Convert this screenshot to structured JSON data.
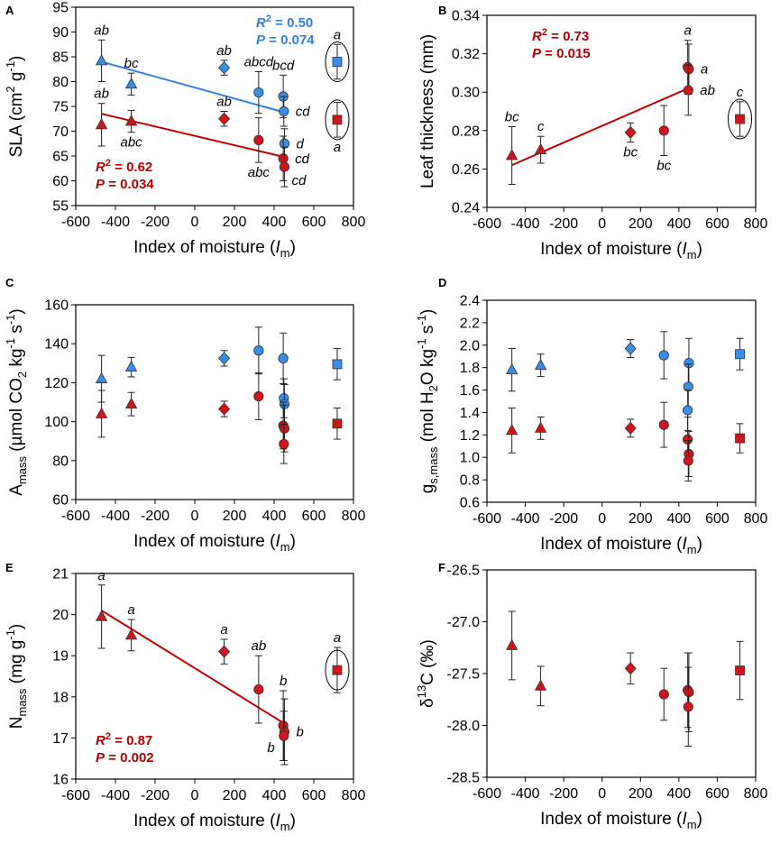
{
  "figure_title": "SLA, leaf thickness, Amass, gs,mass, Nmass and d13C versus index of moisture",
  "colors": {
    "blue": "#3b8de6",
    "red": "#d0141c",
    "blue_line": "#2f7fe0",
    "red_line": "#c00000",
    "blue_text": "#2f7fe0",
    "red_text": "#b00000",
    "axis": "#000000"
  },
  "chart_data": [
    {
      "panel": "A",
      "type": "scatter",
      "ylabel": "SLA (cm2 g-1)",
      "ylabel_main": "SLA (cm",
      "ylabel_sup1": "2",
      "ylabel_mid": " g",
      "ylabel_sup2": "-1",
      "ylabel_end": ")",
      "xlabel_main": "Index of moisture (",
      "xlabel_italic": "I",
      "xlabel_sub": "m",
      "xlabel_end": ")",
      "xlim": [
        -600,
        800
      ],
      "ylim": [
        55,
        95
      ],
      "xticks": [
        -600,
        -400,
        -200,
        0,
        200,
        400,
        600,
        800
      ],
      "yticks": [
        55,
        60,
        65,
        70,
        75,
        80,
        85,
        90,
        95
      ],
      "series": [
        {
          "name": "blue",
          "color": "#3b8de6",
          "points": [
            {
              "x": -470,
              "y": 84.2,
              "err": 4.2,
              "marker": "triangle",
              "label": "ab",
              "label_pos": "above"
            },
            {
              "x": -320,
              "y": 79.5,
              "err": 2.2,
              "marker": "triangle",
              "label": "bc",
              "label_pos": "above"
            },
            {
              "x": 148,
              "y": 82.8,
              "err": 1.5,
              "marker": "diamond",
              "label": "ab",
              "label_pos": "above"
            },
            {
              "x": 322,
              "y": 77.8,
              "err": 4.2,
              "marker": "circle",
              "label": "abcd",
              "label_pos": "above"
            },
            {
              "x": 446,
              "y": 77.0,
              "err": 4.3,
              "marker": "circle",
              "label": "bcd",
              "label_pos": "above"
            },
            {
              "x": 449,
              "y": 74.0,
              "err": 3.0,
              "marker": "circle",
              "label": "cd",
              "label_pos": "right"
            },
            {
              "x": 452,
              "y": 67.5,
              "err": 3.0,
              "marker": "circle",
              "label": "d",
              "label_pos": "right"
            },
            {
              "x": 718,
              "y": 84.0,
              "err": 3.5,
              "marker": "square",
              "label": "a",
              "label_pos": "above",
              "circled": true
            }
          ]
        },
        {
          "name": "red",
          "color": "#d0141c",
          "points": [
            {
              "x": -470,
              "y": 71.3,
              "err": 4.3,
              "marker": "triangle",
              "label": "ab",
              "label_pos": "above"
            },
            {
              "x": -320,
              "y": 72.0,
              "err": 2.2,
              "marker": "triangle",
              "label": "abc",
              "label_pos": "below"
            },
            {
              "x": 148,
              "y": 72.5,
              "err": 1.5,
              "marker": "diamond",
              "label": "ab",
              "label_pos": "above"
            },
            {
              "x": 322,
              "y": 68.2,
              "err": 4.5,
              "marker": "circle",
              "label": "abc",
              "label_pos": "below"
            },
            {
              "x": 446,
              "y": 64.5,
              "err": 4.5,
              "marker": "circle",
              "label": "cd",
              "label_pos": "right"
            },
            {
              "x": 452,
              "y": 62.8,
              "err": 4.0,
              "marker": "circle",
              "label": "cd",
              "label_pos": "right-low"
            },
            {
              "x": 718,
              "y": 72.3,
              "err": 3.5,
              "marker": "square",
              "label": "a",
              "label_pos": "below",
              "circled": true
            }
          ]
        }
      ],
      "fits": [
        {
          "color": "#2f7fe0",
          "x0": -470,
          "y0": 84.0,
          "x1": 452,
          "y1": 73.8
        },
        {
          "color": "#c00000",
          "x0": -470,
          "y0": 73.5,
          "x1": 452,
          "y1": 64.8
        }
      ],
      "stats": [
        {
          "color": "#2f7fe0",
          "r2": "R",
          "r2_sup": "2",
          "r2_val": " = 0.50",
          "p": "P",
          "p_val": " = 0.074",
          "pos": "top-right"
        },
        {
          "color": "#b00000",
          "r2": "R",
          "r2_sup": "2",
          "r2_val": " = 0.62",
          "p": "P",
          "p_val": " = 0.034",
          "pos": "bottom-left"
        }
      ]
    },
    {
      "panel": "B",
      "type": "scatter",
      "ylabel_main": "Leaf thickness (mm)",
      "xlabel_main": "Index of moisture (",
      "xlabel_italic": "I",
      "xlabel_sub": "m",
      "xlabel_end": ")",
      "xlim": [
        -600,
        800
      ],
      "ylim": [
        0.24,
        0.34
      ],
      "xticks": [
        -600,
        -400,
        -200,
        0,
        200,
        400,
        600,
        800
      ],
      "yticks": [
        0.24,
        0.26,
        0.28,
        0.3,
        0.32,
        0.34
      ],
      "ytick_labels": [
        "0.24",
        "0.26",
        "0.28",
        "0.30",
        "0.32",
        "0.34"
      ],
      "series": [
        {
          "name": "red",
          "color": "#d0141c",
          "points": [
            {
              "x": -470,
              "y": 0.267,
              "err": 0.015,
              "marker": "triangle",
              "label": "bc",
              "label_pos": "above"
            },
            {
              "x": -320,
              "y": 0.27,
              "err": 0.007,
              "marker": "triangle",
              "label": "c",
              "label_pos": "above"
            },
            {
              "x": 148,
              "y": 0.279,
              "err": 0.005,
              "marker": "diamond",
              "label": "bc",
              "label_pos": "below"
            },
            {
              "x": 322,
              "y": 0.28,
              "err": 0.013,
              "marker": "circle",
              "label": "bc",
              "label_pos": "below"
            },
            {
              "x": 446,
              "y": 0.313,
              "err": 0.014,
              "marker": "circle",
              "label": "a",
              "label_pos": "above"
            },
            {
              "x": 452,
              "y": 0.312,
              "err": 0.013,
              "marker": "circle",
              "label": "a",
              "label_pos": "right"
            },
            {
              "x": 449,
              "y": 0.301,
              "err": 0.013,
              "marker": "circle",
              "label": "ab",
              "label_pos": "right"
            },
            {
              "x": 718,
              "y": 0.286,
              "err": 0.009,
              "marker": "square",
              "label": "c",
              "label_pos": "above",
              "circled": true
            }
          ]
        }
      ],
      "fits": [
        {
          "color": "#c00000",
          "x0": -470,
          "y0": 0.262,
          "x1": 449,
          "y1": 0.302
        }
      ],
      "stats": [
        {
          "color": "#b00000",
          "r2": "R",
          "r2_sup": "2",
          "r2_val": " = 0.73",
          "p": "P",
          "p_val": " = 0.015",
          "pos": "top-left"
        }
      ]
    },
    {
      "panel": "C",
      "type": "scatter",
      "ylabel_main": "A",
      "ylabel_sub": "mass",
      "ylabel_rest": " (µmol CO",
      "ylabel_sub2": "2",
      "ylabel_rest2": " kg",
      "ylabel_sup1": "-1",
      "ylabel_rest3": " s",
      "ylabel_sup2": "-1",
      "ylabel_end": ")",
      "xlabel_main": "Index of moisture (",
      "xlabel_italic": "I",
      "xlabel_sub": "m",
      "xlabel_end": ")",
      "xlim": [
        -600,
        800
      ],
      "ylim": [
        60,
        160
      ],
      "xticks": [
        -600,
        -400,
        -200,
        0,
        200,
        400,
        600,
        800
      ],
      "yticks": [
        60,
        80,
        100,
        120,
        140,
        160
      ],
      "series": [
        {
          "name": "blue",
          "color": "#3b8de6",
          "points": [
            {
              "x": -470,
              "y": 122,
              "err": 12,
              "marker": "triangle"
            },
            {
              "x": -320,
              "y": 128,
              "err": 5,
              "marker": "triangle"
            },
            {
              "x": 148,
              "y": 132.5,
              "err": 4,
              "marker": "diamond"
            },
            {
              "x": 322,
              "y": 136.5,
              "err": 12,
              "marker": "circle"
            },
            {
              "x": 446,
              "y": 132.5,
              "err": 13,
              "marker": "circle"
            },
            {
              "x": 449,
              "y": 112,
              "err": 10,
              "marker": "circle"
            },
            {
              "x": 452,
              "y": 109,
              "err": 10,
              "marker": "circle"
            },
            {
              "x": 718,
              "y": 129.5,
              "err": 8,
              "marker": "square"
            }
          ]
        },
        {
          "name": "red",
          "color": "#d0141c",
          "points": [
            {
              "x": -470,
              "y": 104,
              "err": 12,
              "marker": "triangle"
            },
            {
              "x": -320,
              "y": 109,
              "err": 6,
              "marker": "triangle"
            },
            {
              "x": 148,
              "y": 106.5,
              "err": 4,
              "marker": "diamond"
            },
            {
              "x": 322,
              "y": 113,
              "err": 12,
              "marker": "circle"
            },
            {
              "x": 446,
              "y": 98,
              "err": 12,
              "marker": "circle"
            },
            {
              "x": 452,
              "y": 96.5,
              "err": 12,
              "marker": "circle"
            },
            {
              "x": 449,
              "y": 88.5,
              "err": 10,
              "marker": "circle"
            },
            {
              "x": 718,
              "y": 99,
              "err": 8,
              "marker": "square"
            }
          ]
        }
      ]
    },
    {
      "panel": "D",
      "type": "scatter",
      "ylabel_main": "g",
      "ylabel_sub": "s,mass",
      "ylabel_rest": " (mol H",
      "ylabel_sub2": "2",
      "ylabel_rest2": "O kg",
      "ylabel_sup1": "-1",
      "ylabel_rest3": " s",
      "ylabel_sup2": "-1",
      "ylabel_end": ")",
      "xlabel_main": "Index of moisture (",
      "xlabel_italic": "I",
      "xlabel_sub": "m",
      "xlabel_end": ")",
      "xlim": [
        -600,
        800
      ],
      "ylim": [
        0.6,
        2.4
      ],
      "xticks": [
        -600,
        -400,
        -200,
        0,
        200,
        400,
        600,
        800
      ],
      "yticks": [
        0.6,
        0.8,
        1.0,
        1.2,
        1.4,
        1.6,
        1.8,
        2.0,
        2.2,
        2.4
      ],
      "ytick_labels": [
        "0.6",
        "0.8",
        "1.0",
        "1.2",
        "1.4",
        "1.6",
        "1.8",
        "2.0",
        "2.2",
        "2.4"
      ],
      "series": [
        {
          "name": "blue",
          "color": "#3b8de6",
          "points": [
            {
              "x": -470,
              "y": 1.78,
              "err": 0.19,
              "marker": "triangle"
            },
            {
              "x": -320,
              "y": 1.82,
              "err": 0.1,
              "marker": "triangle"
            },
            {
              "x": 148,
              "y": 1.97,
              "err": 0.08,
              "marker": "diamond"
            },
            {
              "x": 322,
              "y": 1.91,
              "err": 0.21,
              "marker": "circle"
            },
            {
              "x": 452,
              "y": 1.84,
              "err": 0.22,
              "marker": "circle"
            },
            {
              "x": 449,
              "y": 1.63,
              "err": 0.2,
              "marker": "circle"
            },
            {
              "x": 446,
              "y": 1.42,
              "err": 0.18,
              "marker": "circle"
            },
            {
              "x": 718,
              "y": 1.92,
              "err": 0.14,
              "marker": "square"
            }
          ]
        },
        {
          "name": "red",
          "color": "#d0141c",
          "points": [
            {
              "x": -470,
              "y": 1.24,
              "err": 0.2,
              "marker": "triangle"
            },
            {
              "x": -320,
              "y": 1.26,
              "err": 0.1,
              "marker": "triangle"
            },
            {
              "x": 148,
              "y": 1.26,
              "err": 0.08,
              "marker": "diamond"
            },
            {
              "x": 322,
              "y": 1.29,
              "err": 0.2,
              "marker": "circle"
            },
            {
              "x": 446,
              "y": 1.16,
              "err": 0.2,
              "marker": "circle"
            },
            {
              "x": 452,
              "y": 1.03,
              "err": 0.2,
              "marker": "circle"
            },
            {
              "x": 449,
              "y": 0.97,
              "err": 0.18,
              "marker": "circle"
            },
            {
              "x": 718,
              "y": 1.17,
              "err": 0.13,
              "marker": "square"
            }
          ]
        }
      ]
    },
    {
      "panel": "E",
      "type": "scatter",
      "ylabel_main": "N",
      "ylabel_sub": "mass",
      "ylabel_rest": " (mg g",
      "ylabel_sup1": "-1",
      "ylabel_end": ")",
      "xlabel_main": "Index of moisture (",
      "xlabel_italic": "I",
      "xlabel_sub": "m",
      "xlabel_end": ")",
      "xlim": [
        -600,
        800
      ],
      "ylim": [
        16,
        21
      ],
      "xticks": [
        -600,
        -400,
        -200,
        0,
        200,
        400,
        600,
        800
      ],
      "yticks": [
        16,
        17,
        18,
        19,
        20,
        21
      ],
      "series": [
        {
          "name": "red",
          "color": "#d0141c",
          "points": [
            {
              "x": -470,
              "y": 19.95,
              "err": 0.77,
              "marker": "triangle",
              "label": "a",
              "label_pos": "above"
            },
            {
              "x": -320,
              "y": 19.5,
              "err": 0.38,
              "marker": "triangle",
              "label": "a",
              "label_pos": "above"
            },
            {
              "x": 148,
              "y": 19.1,
              "err": 0.3,
              "marker": "diamond",
              "label": "a",
              "label_pos": "above"
            },
            {
              "x": 322,
              "y": 18.18,
              "err": 0.82,
              "marker": "circle",
              "label": "ab",
              "label_pos": "above"
            },
            {
              "x": 446,
              "y": 17.3,
              "err": 0.85,
              "marker": "circle",
              "label": "b",
              "label_pos": "above"
            },
            {
              "x": 452,
              "y": 17.15,
              "err": 0.8,
              "marker": "circle",
              "label": "b",
              "label_pos": "right"
            },
            {
              "x": 449,
              "y": 17.05,
              "err": 0.6,
              "marker": "circle",
              "label": "b",
              "label_pos": "below-left"
            },
            {
              "x": 718,
              "y": 18.65,
              "err": 0.55,
              "marker": "square",
              "label": "a",
              "label_pos": "above",
              "circled": true
            }
          ]
        }
      ],
      "fits": [
        {
          "color": "#c00000",
          "x0": -470,
          "y0": 20.1,
          "x1": 452,
          "y1": 17.35
        }
      ],
      "stats": [
        {
          "color": "#b00000",
          "r2": "R",
          "r2_sup": "2",
          "r2_val": " = 0.87",
          "p": "P",
          "p_val": " = 0.002",
          "pos": "bottom-left"
        }
      ]
    },
    {
      "panel": "F",
      "type": "scatter",
      "ylabel_main": "δ",
      "ylabel_sup1": "13",
      "ylabel_rest": "C (‰)",
      "xlabel_main": "Index of moisture (",
      "xlabel_italic": "I",
      "xlabel_sub": "m",
      "xlabel_end": ")",
      "xlim": [
        -600,
        800
      ],
      "ylim": [
        -28.5,
        -26.5
      ],
      "xticks": [
        -600,
        -400,
        -200,
        0,
        200,
        400,
        600,
        800
      ],
      "yticks": [
        -28.5,
        -28.0,
        -27.5,
        -27.0,
        -26.5
      ],
      "ytick_labels": [
        "-28.5",
        "-28.0",
        "-27.5",
        "-27.0",
        "-26.5"
      ],
      "series": [
        {
          "name": "red",
          "color": "#d0141c",
          "points": [
            {
              "x": -470,
              "y": -27.23,
              "err": 0.33,
              "marker": "triangle"
            },
            {
              "x": -320,
              "y": -27.62,
              "err": 0.19,
              "marker": "triangle"
            },
            {
              "x": 148,
              "y": -27.45,
              "err": 0.15,
              "marker": "diamond"
            },
            {
              "x": 322,
              "y": -27.7,
              "err": 0.25,
              "marker": "circle"
            },
            {
              "x": 446,
              "y": -27.66,
              "err": 0.36,
              "marker": "circle"
            },
            {
              "x": 452,
              "y": -27.68,
              "err": 0.38,
              "marker": "circle"
            },
            {
              "x": 449,
              "y": -27.82,
              "err": 0.38,
              "marker": "circle"
            },
            {
              "x": 718,
              "y": -27.47,
              "err": 0.28,
              "marker": "square"
            }
          ]
        }
      ]
    }
  ]
}
